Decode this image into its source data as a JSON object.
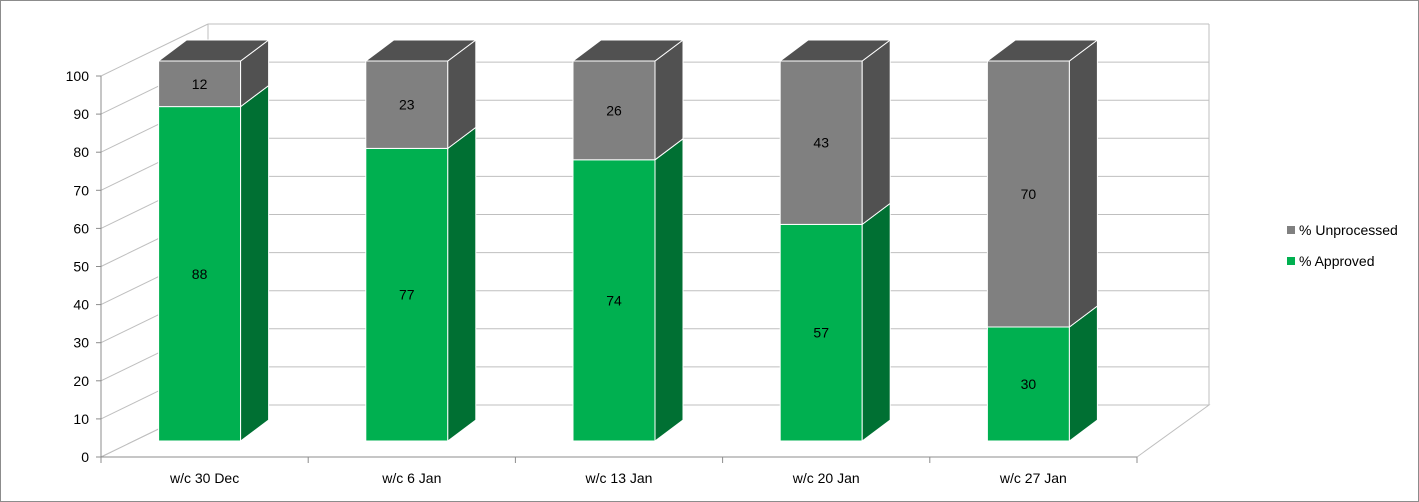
{
  "chart_data": {
    "type": "bar",
    "stacked": true,
    "three_d": true,
    "categories": [
      "w/c 30 Dec",
      "w/c 6 Jan",
      "w/c 13 Jan",
      "w/c 20 Jan",
      "w/c 27 Jan"
    ],
    "series": [
      {
        "name": "% Approved",
        "values": [
          88,
          77,
          74,
          57,
          30
        ],
        "color": "#00b050",
        "side_color": "#007033"
      },
      {
        "name": "% Unprocessed",
        "values": [
          12,
          23,
          26,
          43,
          70
        ],
        "color": "#808080",
        "side_color": "#515151"
      }
    ],
    "ylim": [
      0,
      100
    ],
    "yticks": [
      0,
      10,
      20,
      30,
      40,
      50,
      60,
      70,
      80,
      90,
      100
    ],
    "grid": true,
    "data_labels": true,
    "legend_position": "right",
    "legend_order": [
      "% Unprocessed",
      "% Approved"
    ],
    "title": "",
    "xlabel": "",
    "ylabel": ""
  }
}
